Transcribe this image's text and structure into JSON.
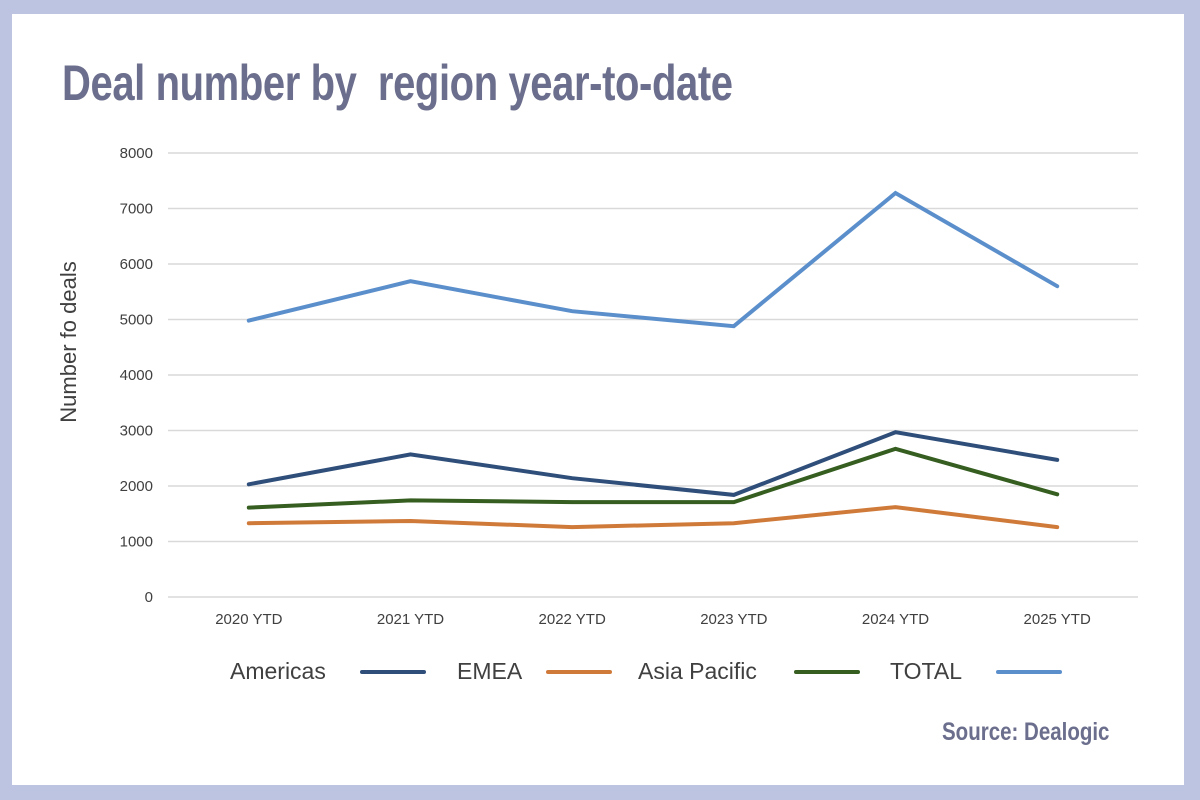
{
  "chart_data": {
    "type": "line",
    "title": "Deal number by  region year-to-date",
    "xlabel": "",
    "ylabel": "Number fo deals",
    "ylim": [
      0,
      8000
    ],
    "yticks": [
      0,
      1000,
      2000,
      3000,
      4000,
      5000,
      6000,
      7000,
      8000
    ],
    "grid": true,
    "legend_position": "bottom",
    "categories": [
      "2020 YTD",
      "2021 YTD",
      "2022 YTD",
      "2023 YTD",
      "2024 YTD",
      "2025 YTD"
    ],
    "series": [
      {
        "name": "Americas",
        "color": "#2f4f7a",
        "values": [
          2030,
          2570,
          2140,
          1840,
          2970,
          2470
        ]
      },
      {
        "name": "EMEA",
        "color": "#d07a3a",
        "values": [
          1330,
          1370,
          1260,
          1330,
          1620,
          1260
        ]
      },
      {
        "name": "Asia Pacific",
        "color": "#355e20",
        "values": [
          1610,
          1740,
          1710,
          1710,
          2670,
          1850
        ]
      },
      {
        "name": "TOTAL",
        "color": "#5b8fcc",
        "values": [
          4980,
          5690,
          5150,
          4880,
          7280,
          5600
        ]
      }
    ],
    "source": "Source: Dealogic"
  },
  "colors": {
    "frame": "#bcc4e2",
    "title": "#6b6e8c",
    "gridline": "#d9d9d9"
  }
}
